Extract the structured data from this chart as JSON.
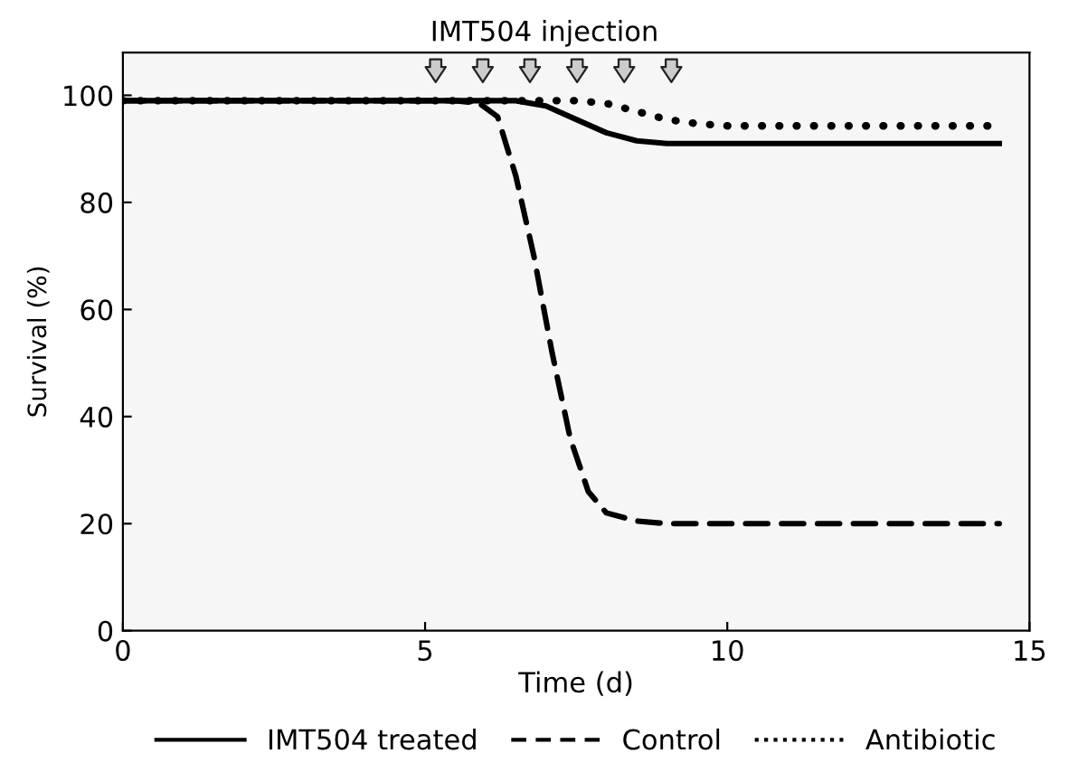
{
  "chart_data": {
    "type": "line",
    "xlabel": "Time (d)",
    "ylabel": "Survival (%)",
    "xlim": [
      0,
      15
    ],
    "xticks": [
      0,
      5,
      10,
      15
    ],
    "ylim": [
      0,
      108
    ],
    "yticks": [
      0,
      20,
      40,
      60,
      80,
      100
    ],
    "annotations": [
      "IMT504 injection"
    ],
    "legend": "bottom",
    "grid": false,
    "marker": "none",
    "series": [
      {
        "name": "IMT504 treated",
        "color": "#000000",
        "line_style": "solid",
        "x": [
          0,
          6.5,
          7,
          7.5,
          8,
          8.5,
          9,
          14.5
        ],
        "values": [
          99,
          99,
          98,
          95.5,
          93,
          91.5,
          91,
          91
        ]
      },
      {
        "name": "Control",
        "color": "#000000",
        "line_style": "dashed",
        "x": [
          0,
          5.5,
          5.9,
          6.2,
          6.5,
          6.8,
          7.1,
          7.4,
          7.7,
          8,
          8.5,
          9,
          14.5
        ],
        "values": [
          99,
          99,
          98.5,
          96,
          85,
          70,
          52,
          36,
          26,
          22,
          20.5,
          20,
          20
        ]
      },
      {
        "name": "Antibiotic",
        "color": "#000000",
        "line_style": "dotted",
        "x": [
          0,
          7.5,
          8,
          8.5,
          9,
          9.5,
          10,
          14.5
        ],
        "values": [
          99,
          99,
          98.5,
          97,
          95.5,
          94.7,
          94.3,
          94.3
        ]
      }
    ]
  }
}
